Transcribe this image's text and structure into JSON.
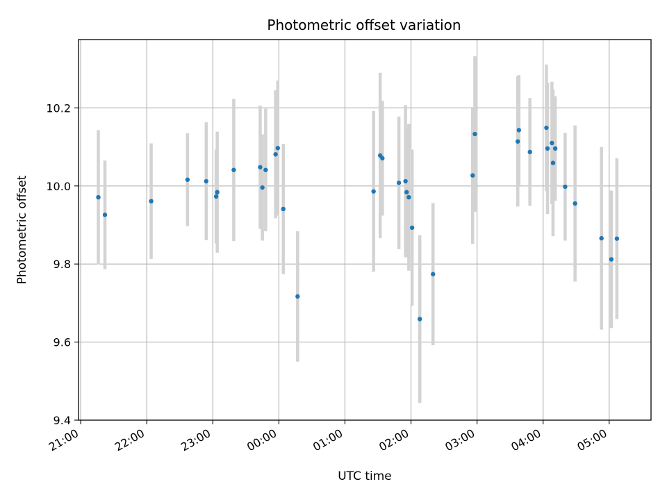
{
  "chart_data": {
    "type": "scatter",
    "title": "Photometric offset variation",
    "xlabel": "UTC time",
    "ylabel": "Photometric offset",
    "x_ticks": [
      "21:00",
      "22:00",
      "23:00",
      "00:00",
      "01:00",
      "02:00",
      "03:00",
      "04:00",
      "05:00"
    ],
    "y_ticks": [
      "9.4",
      "9.6",
      "9.8",
      "10.0",
      "10.2"
    ],
    "xlim": [
      "2000-01-01T20:58",
      "2000-01-02T05:38"
    ],
    "ylim": [
      9.4,
      10.375
    ],
    "grid": true,
    "colors": {
      "points": "#1f77b4",
      "errorbars": "#d3d3d3",
      "grid": "#b0b0b0"
    },
    "series": [
      {
        "points": [
          {
            "x": "2000-01-01T21:16",
            "y": 9.971,
            "yerr": 0.172
          },
          {
            "x": "2000-01-01T21:22",
            "y": 9.926,
            "yerr": 0.139
          },
          {
            "x": "2000-01-01T22:04",
            "y": 9.961,
            "yerr": 0.148
          },
          {
            "x": "2000-01-01T22:37",
            "y": 10.016,
            "yerr": 0.119
          },
          {
            "x": "2000-01-01T22:54",
            "y": 10.012,
            "yerr": 0.151
          },
          {
            "x": "2000-01-01T23:03",
            "y": 9.973,
            "yerr": 0.12
          },
          {
            "x": "2000-01-01T23:04",
            "y": 9.984,
            "yerr": 0.155
          },
          {
            "x": "2000-01-01T23:19",
            "y": 10.041,
            "yerr": 0.182
          },
          {
            "x": "2000-01-01T23:43",
            "y": 10.048,
            "yerr": 0.158
          },
          {
            "x": "2000-01-01T23:45",
            "y": 9.996,
            "yerr": 0.136
          },
          {
            "x": "2000-01-01T23:48",
            "y": 10.041,
            "yerr": 0.157
          },
          {
            "x": "2000-01-01T23:57",
            "y": 10.081,
            "yerr": 0.164
          },
          {
            "x": "2000-01-01T23:59",
            "y": 10.097,
            "yerr": 0.173
          },
          {
            "x": "2000-01-02T00:04",
            "y": 9.941,
            "yerr": 0.167
          },
          {
            "x": "2000-01-02T00:17",
            "y": 9.717,
            "yerr": 0.167
          },
          {
            "x": "2000-01-02T01:26",
            "y": 9.986,
            "yerr": 0.206
          },
          {
            "x": "2000-01-02T01:32",
            "y": 10.078,
            "yerr": 0.212
          },
          {
            "x": "2000-01-02T01:34",
            "y": 10.071,
            "yerr": 0.147
          },
          {
            "x": "2000-01-02T01:49",
            "y": 10.008,
            "yerr": 0.17
          },
          {
            "x": "2000-01-02T01:55",
            "y": 10.012,
            "yerr": 0.195
          },
          {
            "x": "2000-01-02T01:56",
            "y": 9.984,
            "yerr": 0.165
          },
          {
            "x": "2000-01-02T01:58",
            "y": 9.971,
            "yerr": 0.188
          },
          {
            "x": "2000-01-02T02:01",
            "y": 9.893,
            "yerr": 0.2
          },
          {
            "x": "2000-01-02T02:08",
            "y": 9.659,
            "yerr": 0.215
          },
          {
            "x": "2000-01-02T02:20",
            "y": 9.774,
            "yerr": 0.182
          },
          {
            "x": "2000-01-02T02:56",
            "y": 10.027,
            "yerr": 0.175
          },
          {
            "x": "2000-01-02T02:58",
            "y": 10.133,
            "yerr": 0.199
          },
          {
            "x": "2000-01-02T03:37",
            "y": 10.114,
            "yerr": 0.167
          },
          {
            "x": "2000-01-02T03:38",
            "y": 10.143,
            "yerr": 0.141
          },
          {
            "x": "2000-01-02T03:48",
            "y": 10.087,
            "yerr": 0.138
          },
          {
            "x": "2000-01-02T04:03",
            "y": 10.149,
            "yerr": 0.162
          },
          {
            "x": "2000-01-02T04:04",
            "y": 10.096,
            "yerr": 0.168
          },
          {
            "x": "2000-01-02T04:08",
            "y": 10.11,
            "yerr": 0.157
          },
          {
            "x": "2000-01-02T04:09",
            "y": 10.059,
            "yerr": 0.188
          },
          {
            "x": "2000-01-02T04:11",
            "y": 10.096,
            "yerr": 0.134
          },
          {
            "x": "2000-01-02T04:20",
            "y": 9.998,
            "yerr": 0.138
          },
          {
            "x": "2000-01-02T04:29",
            "y": 9.955,
            "yerr": 0.2
          },
          {
            "x": "2000-01-02T04:53",
            "y": 9.866,
            "yerr": 0.234
          },
          {
            "x": "2000-01-02T05:02",
            "y": 9.812,
            "yerr": 0.176
          },
          {
            "x": "2000-01-02T05:07",
            "y": 9.865,
            "yerr": 0.206
          }
        ]
      }
    ]
  }
}
